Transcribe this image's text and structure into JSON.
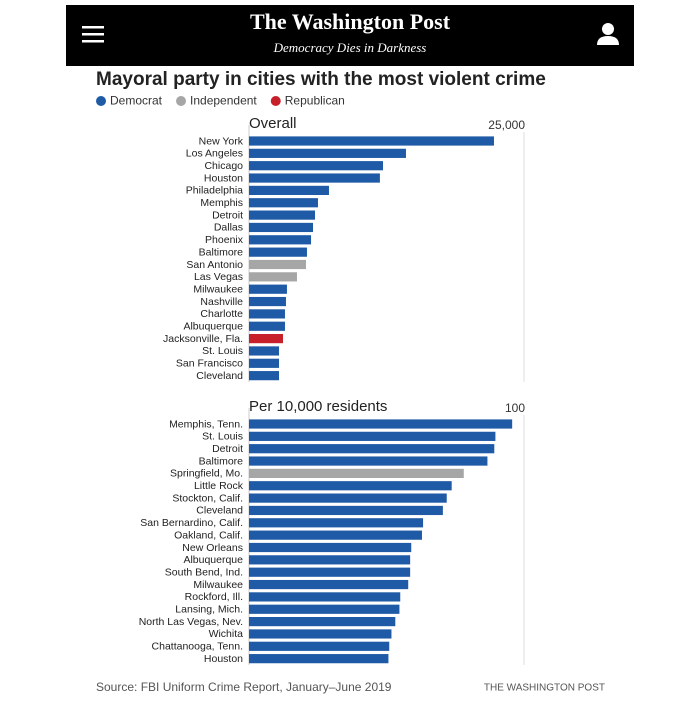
{
  "header": {
    "logo": "The Washington Post",
    "tagline": "Democracy Dies in Darkness"
  },
  "figure": {
    "title": "Mayoral party in cities with the most violent crime",
    "legend": [
      {
        "name": "Democrat",
        "color": "#1f5aa6"
      },
      {
        "name": "Independent",
        "color": "#a6a6a6"
      },
      {
        "name": "Republican",
        "color": "#c8202a"
      }
    ],
    "source": "Source: FBI Uniform Crime Report, January–June 2019",
    "credit": "THE WASHINGTON POST"
  },
  "chart_data": [
    {
      "type": "bar",
      "title": "Overall",
      "categories": [
        "New York",
        "Los Angeles",
        "Chicago",
        "Houston",
        "Philadelphia",
        "Memphis",
        "Detroit",
        "Dallas",
        "Phoenix",
        "Baltimore",
        "San Antonio",
        "Las Vegas",
        "Milwaukee",
        "Nashville",
        "Charlotte",
        "Albuquerque",
        "Jacksonville, Fla.",
        "St. Louis",
        "San Francisco",
        "Cleveland"
      ],
      "values": [
        22270,
        14270,
        12180,
        11900,
        7270,
        6270,
        6000,
        5820,
        5640,
        5270,
        5180,
        4360,
        3450,
        3360,
        3270,
        3270,
        3090,
        2730,
        2730,
        2730
      ],
      "colors": [
        "#1f5aa6",
        "#1f5aa6",
        "#1f5aa6",
        "#1f5aa6",
        "#1f5aa6",
        "#1f5aa6",
        "#1f5aa6",
        "#1f5aa6",
        "#1f5aa6",
        "#1f5aa6",
        "#a6a6a6",
        "#a6a6a6",
        "#1f5aa6",
        "#1f5aa6",
        "#1f5aa6",
        "#1f5aa6",
        "#c8202a",
        "#1f5aa6",
        "#1f5aa6",
        "#1f5aa6"
      ],
      "xlim": [
        0,
        25000
      ],
      "xticks": [
        {
          "value": 25000,
          "label": "25,000"
        }
      ],
      "grid": true
    },
    {
      "type": "bar",
      "title": "Per 10,000 residents",
      "categories": [
        "Memphis, Tenn.",
        "St. Louis",
        "Detroit",
        "Baltimore",
        "Springfield, Mo.",
        "Little Rock",
        "Stockton, Calif.",
        "Cleveland",
        "San Bernardino, Calif.",
        "Oakland, Calif.",
        "New Orleans",
        "Albuquerque",
        "South Bend, Ind.",
        "Milwaukee",
        "Rockford, Ill.",
        "Lansing, Mich.",
        "North Las Vegas, Nev.",
        "Wichita",
        "Chattanooga, Tenn.",
        "Houston"
      ],
      "values": [
        95.7,
        89.6,
        89.2,
        86.7,
        78.1,
        73.7,
        71.9,
        70.5,
        63.3,
        62.9,
        59,
        58.6,
        58.6,
        57.9,
        55,
        54.7,
        53.2,
        51.8,
        51,
        50.7
      ],
      "colors": [
        "#1f5aa6",
        "#1f5aa6",
        "#1f5aa6",
        "#1f5aa6",
        "#a6a6a6",
        "#1f5aa6",
        "#1f5aa6",
        "#1f5aa6",
        "#1f5aa6",
        "#1f5aa6",
        "#1f5aa6",
        "#1f5aa6",
        "#1f5aa6",
        "#1f5aa6",
        "#1f5aa6",
        "#1f5aa6",
        "#1f5aa6",
        "#1f5aa6",
        "#1f5aa6",
        "#1f5aa6"
      ],
      "xlim": [
        0,
        100
      ],
      "xticks": [
        100
      ],
      "grid": true
    }
  ]
}
